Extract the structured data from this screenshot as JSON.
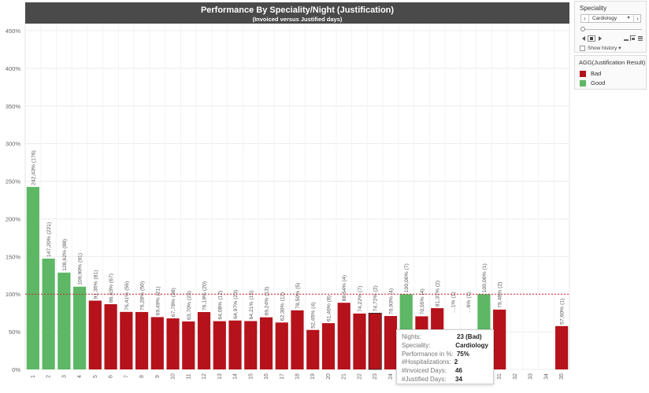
{
  "header": {
    "title": "Performance By Speciality/Night (Justification)",
    "subtitle": "(Invoiced versus Justified days)"
  },
  "colors": {
    "bad": "#b5121b",
    "good": "#5db765",
    "ref_line": "#d0262d"
  },
  "chart_data": {
    "type": "bar",
    "title": "Performance By Speciality/Night (Justification)",
    "subtitle": "(Invoiced versus Justified days)",
    "x": [
      "1",
      "2",
      "3",
      "4",
      "5",
      "6",
      "7",
      "8",
      "9",
      "10",
      "11",
      "12",
      "13",
      "14",
      "15",
      "16",
      "17",
      "18",
      "19",
      "20",
      "21",
      "22",
      "23",
      "24",
      "25",
      "26",
      "27",
      "28",
      "29",
      "30",
      "31",
      "32",
      "33",
      "34",
      "35"
    ],
    "y_ticks": [
      "0%",
      "50%",
      "100%",
      "150%",
      "200%",
      "250%",
      "300%",
      "350%",
      "400%",
      "450%"
    ],
    "ylim": [
      0,
      450
    ],
    "reference_line": 100,
    "grid": true,
    "bars": [
      {
        "x": "1",
        "value": 242.43,
        "label": "242,43% (176)",
        "result": "Good"
      },
      {
        "x": "2",
        "value": 147.2,
        "label": "147,20% (221)",
        "result": "Good"
      },
      {
        "x": "3",
        "value": 128.62,
        "label": "128,62% (88)",
        "result": "Good"
      },
      {
        "x": "4",
        "value": 109.9,
        "label": "109,90% (91)",
        "result": "Good"
      },
      {
        "x": "5",
        "value": 91.35,
        "label": "91,35% (81)",
        "result": "Bad"
      },
      {
        "x": "6",
        "value": 86.63,
        "label": "86,63% (67)",
        "result": "Bad"
      },
      {
        "x": "7",
        "value": 76.41,
        "label": "76,41% (56)",
        "result": "Bad"
      },
      {
        "x": "8",
        "value": 76.28,
        "label": "76,28% (50)",
        "result": "Bad"
      },
      {
        "x": "9",
        "value": 69.49,
        "label": "69,49% (21)",
        "result": "Bad"
      },
      {
        "x": "10",
        "value": 67.78,
        "label": "67,78% (38)",
        "result": "Bad"
      },
      {
        "x": "11",
        "value": 63.7,
        "label": "63,70% (23)",
        "result": "Bad"
      },
      {
        "x": "12",
        "value": 76.19,
        "label": "76,19% (20)",
        "result": "Bad"
      },
      {
        "x": "13",
        "value": 64.08,
        "label": "64,08% (12)",
        "result": "Bad"
      },
      {
        "x": "14",
        "value": 64.97,
        "label": "64,97% (23)",
        "result": "Bad"
      },
      {
        "x": "15",
        "value": 64.21,
        "label": "64,21% (15)",
        "result": "Bad"
      },
      {
        "x": "16",
        "value": 69.24,
        "label": "69,24% (13)",
        "result": "Bad"
      },
      {
        "x": "17",
        "value": 62.3,
        "label": "62,30% (11)",
        "result": "Bad"
      },
      {
        "x": "18",
        "value": 78.5,
        "label": "78,50% (5)",
        "result": "Bad"
      },
      {
        "x": "19",
        "value": 52.45,
        "label": "52,45% (4)",
        "result": "Bad"
      },
      {
        "x": "20",
        "value": 61.46,
        "label": "61,46% (8)",
        "result": "Bad"
      },
      {
        "x": "21",
        "value": 88.54,
        "label": "88,54% (4)",
        "result": "Bad"
      },
      {
        "x": "22",
        "value": 74.22,
        "label": "74,22% (7)",
        "result": "Bad"
      },
      {
        "x": "23",
        "value": 74.72,
        "label": "74,72% (2)",
        "result": "Bad"
      },
      {
        "x": "24",
        "value": 70.93,
        "label": "70,93% (4)",
        "result": "Bad"
      },
      {
        "x": "25",
        "value": 100.0,
        "label": "100,00% (7)",
        "result": "Good"
      },
      {
        "x": "26",
        "value": 70.55,
        "label": "70,55% (4)",
        "result": "Bad"
      },
      {
        "x": "27",
        "value": 81.37,
        "label": "81,37% (2)",
        "result": "Bad"
      },
      {
        "x": "28",
        "value": null,
        "label": "…1% (1)",
        "result": "Bad"
      },
      {
        "x": "29",
        "value": null,
        "label": "…6% (1)",
        "result": "Bad"
      },
      {
        "x": "30",
        "value": 100.0,
        "label": "100,00% (1)",
        "result": "Good"
      },
      {
        "x": "31",
        "value": 79.48,
        "label": "79,48% (2)",
        "result": "Bad"
      },
      {
        "x": "35",
        "value": 57.6,
        "label": "57,60% (1)",
        "result": "Bad"
      }
    ]
  },
  "tooltip": {
    "rows": [
      {
        "key": "Nights:",
        "value": "23 (Bad)"
      },
      {
        "key": "Speciality:",
        "value": "Cardiology"
      },
      {
        "key": "Performance in %:",
        "value": "75%"
      },
      {
        "key": "#Hospitalizations:",
        "value": "2"
      },
      {
        "key": "#Invoiced Days:",
        "value": "46"
      },
      {
        "key": "#Justified Days:",
        "value": "34"
      }
    ]
  },
  "side": {
    "speciality_title": "Speciality",
    "speciality_value": "Cardiology",
    "prev_glyph": "‹",
    "next_glyph": "›",
    "drop_glyph": "▾",
    "show_history": "Show history",
    "legend_title": "AGG(Justification Result)",
    "legend_items": [
      {
        "label": "Bad",
        "color": "#b5121b"
      },
      {
        "label": "Good",
        "color": "#5db765"
      }
    ]
  }
}
